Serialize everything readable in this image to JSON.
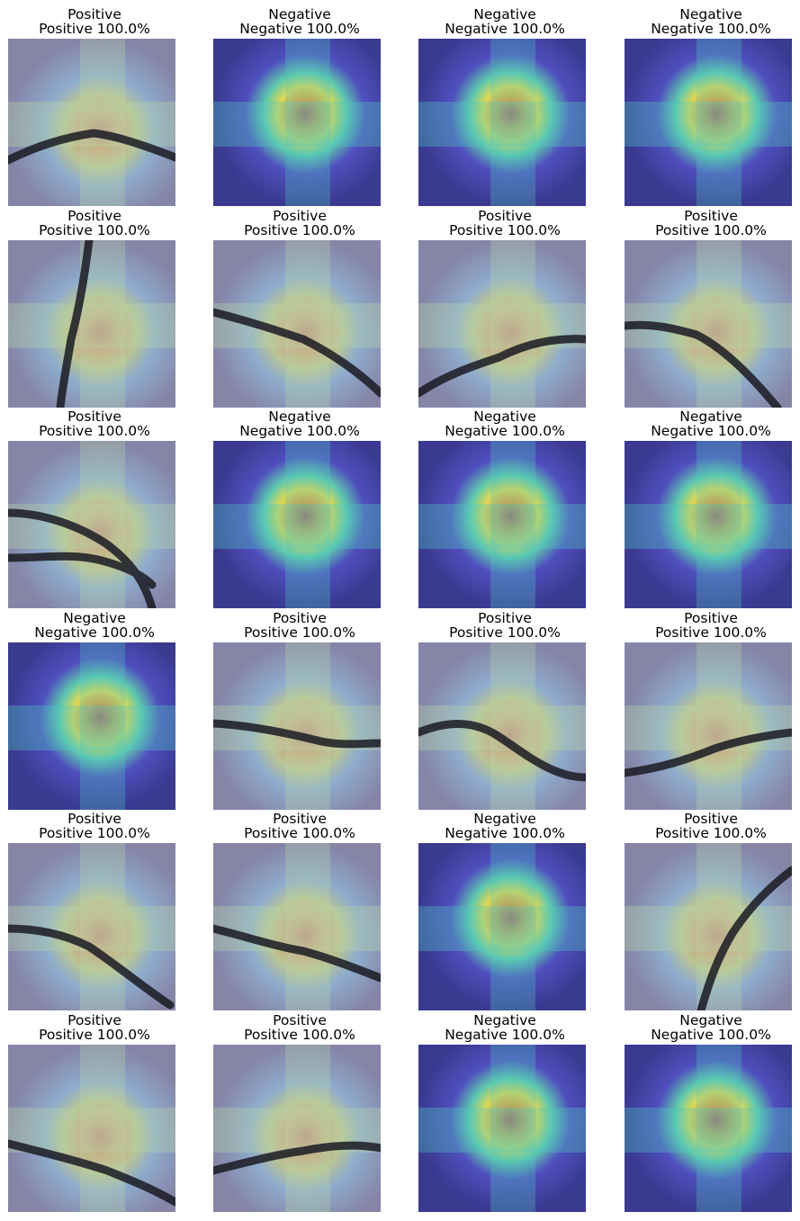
{
  "figure": {
    "cells": [
      {
        "label": "Positive",
        "prediction": "Positive 100.0%",
        "crack": "h1",
        "heat": "positive"
      },
      {
        "label": "Negative",
        "prediction": "Negative 100.0%",
        "crack": "none",
        "heat": "negative"
      },
      {
        "label": "Negative",
        "prediction": "Negative 100.0%",
        "crack": "none",
        "heat": "negative"
      },
      {
        "label": "Negative",
        "prediction": "Negative 100.0%",
        "crack": "none",
        "heat": "negative"
      },
      {
        "label": "Positive",
        "prediction": "Positive 100.0%",
        "crack": "v1",
        "heat": "positive"
      },
      {
        "label": "Positive",
        "prediction": "Positive 100.0%",
        "crack": "d1",
        "heat": "positive"
      },
      {
        "label": "Positive",
        "prediction": "Positive 100.0%",
        "crack": "d2",
        "heat": "positive"
      },
      {
        "label": "Positive",
        "prediction": "Positive 100.0%",
        "crack": "d3",
        "heat": "positive"
      },
      {
        "label": "Positive",
        "prediction": "Positive 100.0%",
        "crack": "double",
        "heat": "positive"
      },
      {
        "label": "Negative",
        "prediction": "Negative 100.0%",
        "crack": "none",
        "heat": "negative"
      },
      {
        "label": "Negative",
        "prediction": "Negative 100.0%",
        "crack": "none",
        "heat": "negative"
      },
      {
        "label": "Negative",
        "prediction": "Negative 100.0%",
        "crack": "none",
        "heat": "negative"
      },
      {
        "label": "Negative",
        "prediction": "Negative 100.0%",
        "crack": "none",
        "heat": "negative"
      },
      {
        "label": "Positive",
        "prediction": "Positive 100.0%",
        "crack": "h2",
        "heat": "positive"
      },
      {
        "label": "Positive",
        "prediction": "Positive 100.0%",
        "crack": "d4",
        "heat": "positive"
      },
      {
        "label": "Positive",
        "prediction": "Positive 100.0%",
        "crack": "h3",
        "heat": "positive"
      },
      {
        "label": "Positive",
        "prediction": "Positive 100.0%",
        "crack": "d5",
        "heat": "positive"
      },
      {
        "label": "Positive",
        "prediction": "Positive 100.0%",
        "crack": "d6",
        "heat": "positive"
      },
      {
        "label": "Negative",
        "prediction": "Negative 100.0%",
        "crack": "none",
        "heat": "negative"
      },
      {
        "label": "Positive",
        "prediction": "Positive 100.0%",
        "crack": "v2",
        "heat": "positive"
      },
      {
        "label": "Positive",
        "prediction": "Positive 100.0%",
        "crack": "d7",
        "heat": "positive"
      },
      {
        "label": "Positive",
        "prediction": "Positive 100.0%",
        "crack": "h4",
        "heat": "positive"
      },
      {
        "label": "Negative",
        "prediction": "Negative 100.0%",
        "crack": "none",
        "heat": "negative"
      },
      {
        "label": "Negative",
        "prediction": "Negative 100.0%",
        "crack": "none",
        "heat": "negative"
      }
    ]
  }
}
